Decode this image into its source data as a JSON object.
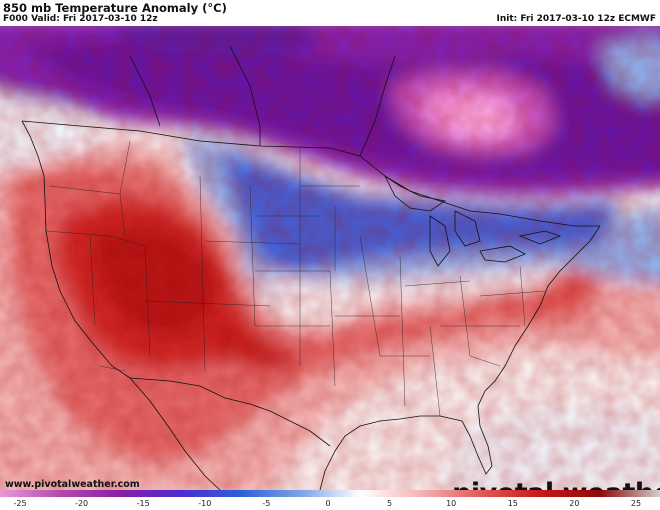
{
  "header": {
    "title": "850 mb Temperature Anomaly (°C)",
    "valid": "F000 Valid: Fri 2017-03-10 12z",
    "init": "Init: Fri 2017-03-10 12z ECMWF"
  },
  "footer": {
    "site": "www.pivotalweather.com",
    "brand": "pivotal weather"
  },
  "colorbar": {
    "ticks": [
      "-25",
      "-20",
      "-15",
      "-10",
      "-5",
      "0",
      "5",
      "10",
      "15",
      "20",
      "25"
    ],
    "range": [
      -25,
      25
    ],
    "colors": [
      "#e79ad6",
      "#b34ab0",
      "#8a1ea8",
      "#4b2bd0",
      "#2f5fd8",
      "#7aa2e6",
      "#ffffff",
      "#f5b5b5",
      "#e25a5a",
      "#c81818",
      "#8f0808",
      "#cfcfcf"
    ]
  },
  "map": {
    "colors": {
      "cold_strong": "#ef8fdc",
      "cold_purple": "#8a2ab8",
      "cold_blue": "#3b4fd6",
      "cool_light": "#a9c4ee",
      "neutral": "#f7f2f2",
      "warm_light": "#f6c1c1",
      "warm": "#e25a5a",
      "warm_strong": "#c81818"
    }
  }
}
